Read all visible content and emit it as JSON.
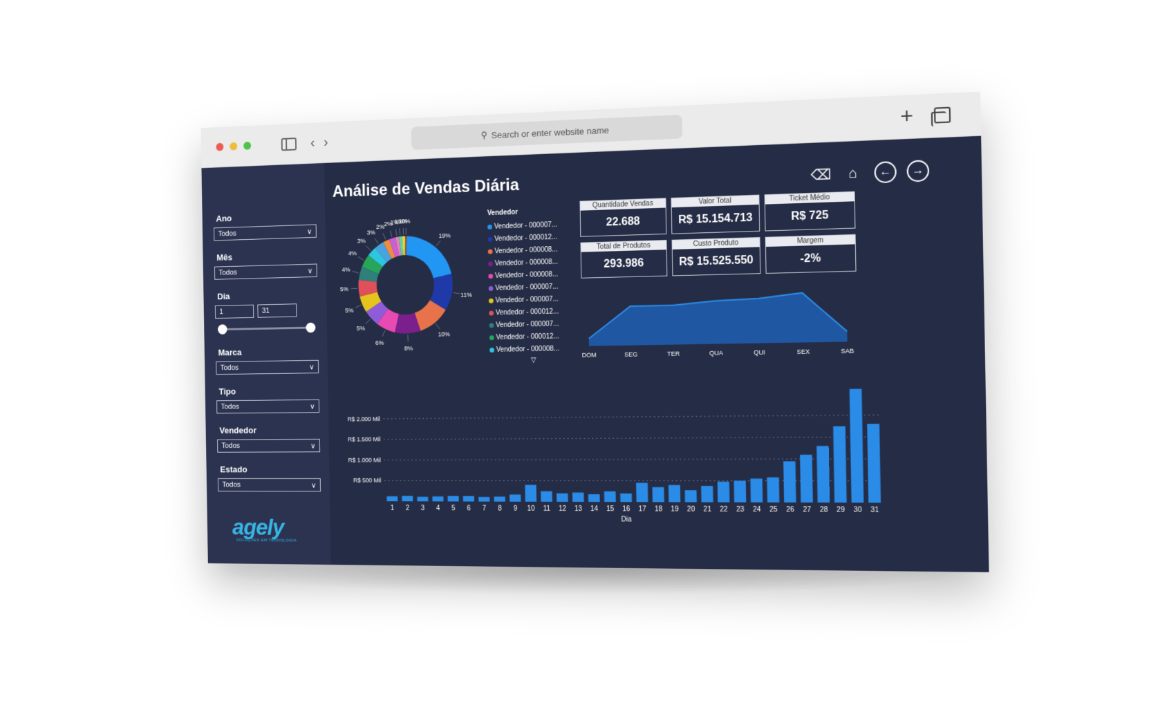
{
  "browser": {
    "address_placeholder": "Search or enter website name"
  },
  "dashboard": {
    "title": "Análise de Vendas Diária"
  },
  "filters": {
    "ano": {
      "label": "Ano",
      "value": "Todos"
    },
    "mes": {
      "label": "Mês",
      "value": "Todos"
    },
    "dia": {
      "label": "Dia",
      "min": "1",
      "max": "31"
    },
    "marca": {
      "label": "Marca",
      "value": "Todos"
    },
    "tipo": {
      "label": "Tipo",
      "value": "Todos"
    },
    "vendedor": {
      "label": "Vendedor",
      "value": "Todos"
    },
    "estado": {
      "label": "Estado",
      "value": "Todos"
    }
  },
  "logo": {
    "name": "agely",
    "tagline": "SOLUÇÕES EM TECNOLOGIA",
    "color": "#37b5e6"
  },
  "kpis": [
    {
      "label": "Quantidade Vendas",
      "value": "22.688"
    },
    {
      "label": "Valor Total",
      "value": "R$ 15.154.713"
    },
    {
      "label": "Ticket Médio",
      "value": "R$ 725"
    },
    {
      "label": "Total de Produtos",
      "value": "293.986"
    },
    {
      "label": "Custo Produto",
      "value": "R$ 15.525.550"
    },
    {
      "label": "Margem",
      "value": "-2%"
    }
  ],
  "legend": {
    "title": "Vendedor",
    "items": [
      {
        "label": "Vendedor - 000007...",
        "color": "#2196f3"
      },
      {
        "label": "Vendedor - 000012...",
        "color": "#1f3aa8"
      },
      {
        "label": "Vendedor - 000008...",
        "color": "#e8734a"
      },
      {
        "label": "Vendedor - 000008...",
        "color": "#7b1f8c"
      },
      {
        "label": "Vendedor - 000008...",
        "color": "#e84ab3"
      },
      {
        "label": "Vendedor - 000007...",
        "color": "#8e5cd9"
      },
      {
        "label": "Vendedor - 000007...",
        "color": "#e6c41f"
      },
      {
        "label": "Vendedor - 000012...",
        "color": "#e0505a"
      },
      {
        "label": "Vendedor - 000007...",
        "color": "#2f7f7a"
      },
      {
        "label": "Vendedor - 000012...",
        "color": "#27a55a"
      },
      {
        "label": "Vendedor - 000008...",
        "color": "#2ec5e0"
      }
    ],
    "more_icon": "chevron-down-icon"
  },
  "chart_data": [
    {
      "type": "pie",
      "donut": true,
      "slice_labels": [
        "19%",
        "11%",
        "10%",
        "8%",
        "6%",
        "5%",
        "5%",
        "5%",
        "4%",
        "4%",
        "3%",
        "3%",
        "2%",
        "2%",
        "1%",
        "1%",
        "1%",
        "0%"
      ],
      "values": [
        19,
        11,
        10,
        8,
        6,
        5,
        5,
        5,
        4,
        4,
        3,
        3,
        2,
        2,
        1,
        1,
        1,
        0.5
      ],
      "colors": [
        "#2196f3",
        "#1f3aa8",
        "#e8734a",
        "#7b1f8c",
        "#e84ab3",
        "#8e5cd9",
        "#e6c41f",
        "#e0505a",
        "#2f7f7a",
        "#27a55a",
        "#2ec5e0",
        "#4aa3df",
        "#f08c3c",
        "#c75fd9",
        "#ee7fb0",
        "#5ad1a8",
        "#d9d94a",
        "#a0522d"
      ]
    },
    {
      "type": "area",
      "categories": [
        "DOM",
        "SEG",
        "TER",
        "QUA",
        "QUI",
        "SEX",
        "SAB"
      ],
      "values": [
        0.15,
        0.78,
        0.78,
        0.85,
        0.88,
        0.97,
        0.2
      ],
      "ylim": [
        0,
        1
      ],
      "color": "#1e5fb3"
    },
    {
      "type": "bar",
      "xlabel": "Dia",
      "ytick_labels": [
        "R$ 2.000 Mil",
        "R$ 1.500 Mil",
        "R$ 1.000 Mil",
        "R$ 500 Mil"
      ],
      "ytick_values": [
        2000,
        1500,
        1000,
        500
      ],
      "categories": [
        "1",
        "2",
        "3",
        "4",
        "5",
        "6",
        "7",
        "8",
        "9",
        "10",
        "11",
        "12",
        "13",
        "14",
        "15",
        "16",
        "17",
        "18",
        "19",
        "20",
        "21",
        "22",
        "23",
        "24",
        "25",
        "26",
        "27",
        "28",
        "29",
        "30",
        "31"
      ],
      "values": [
        120,
        130,
        110,
        120,
        130,
        130,
        110,
        120,
        170,
        400,
        250,
        200,
        220,
        180,
        250,
        200,
        450,
        350,
        400,
        280,
        380,
        480,
        500,
        550,
        580,
        950,
        1100,
        1300,
        1750,
        2600,
        1800
      ],
      "ylim": [
        0,
        2700
      ],
      "grid": true,
      "color": "#2b8ce8"
    }
  ]
}
